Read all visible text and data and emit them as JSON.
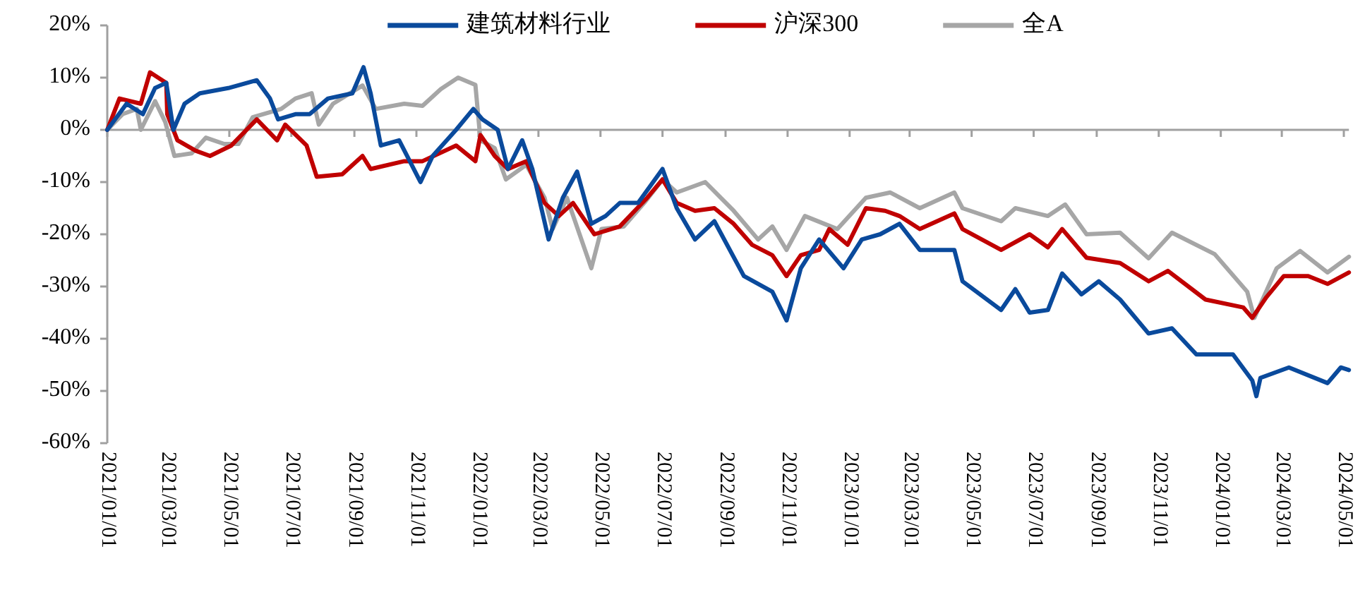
{
  "chart_data": {
    "type": "line",
    "legend": "top",
    "xlim": [
      "2021-01-01",
      "2024-05-06"
    ],
    "ylim": [
      -60,
      20
    ],
    "yticks": [
      {
        "value": 20,
        "label": "20%"
      },
      {
        "value": 10,
        "label": "10%"
      },
      {
        "value": 0,
        "label": "0%"
      },
      {
        "value": -10,
        "label": "-10%"
      },
      {
        "value": -20,
        "label": "-20%"
      },
      {
        "value": -30,
        "label": "-30%"
      },
      {
        "value": -40,
        "label": "-40%"
      },
      {
        "value": -50,
        "label": "-50%"
      },
      {
        "value": -60,
        "label": "-60%"
      }
    ],
    "xticks": [
      {
        "value": "2021-01-01",
        "label": "2021/01/01"
      },
      {
        "value": "2021-03-01",
        "label": "2021/03/01"
      },
      {
        "value": "2021-05-01",
        "label": "2021/05/01"
      },
      {
        "value": "2021-07-01",
        "label": "2021/07/01"
      },
      {
        "value": "2021-09-01",
        "label": "2021/09/01"
      },
      {
        "value": "2021-11-01",
        "label": "2021/11/01"
      },
      {
        "value": "2022-01-01",
        "label": "2022/01/01"
      },
      {
        "value": "2022-03-01",
        "label": "2022/03/01"
      },
      {
        "value": "2022-05-01",
        "label": "2022/05/01"
      },
      {
        "value": "2022-07-01",
        "label": "2022/07/01"
      },
      {
        "value": "2022-09-01",
        "label": "2022/09/01"
      },
      {
        "value": "2022-11-01",
        "label": "2022/11/01"
      },
      {
        "value": "2023-01-01",
        "label": "2023/01/01"
      },
      {
        "value": "2023-03-01",
        "label": "2023/03/01"
      },
      {
        "value": "2023-05-01",
        "label": "2023/05/01"
      },
      {
        "value": "2023-07-01",
        "label": "2023/07/01"
      },
      {
        "value": "2023-09-01",
        "label": "2023/09/01"
      },
      {
        "value": "2023-11-01",
        "label": "2023/11/01"
      },
      {
        "value": "2024-01-01",
        "label": "2024/01/01"
      },
      {
        "value": "2024-03-01",
        "label": "2024/03/01"
      },
      {
        "value": "2024-05-01",
        "label": "2024/05/01"
      }
    ],
    "series": [
      {
        "name": "建筑材料行业",
        "color": "#0a4a9c",
        "x": [
          "2021-01-01",
          "2021-01-20",
          "2021-02-05",
          "2021-02-17",
          "2021-02-28",
          "2021-03-07",
          "2021-03-18",
          "2021-04-02",
          "2021-04-30",
          "2021-05-28",
          "2021-06-10",
          "2021-06-18",
          "2021-07-05",
          "2021-07-19",
          "2021-08-06",
          "2021-08-30",
          "2021-09-10",
          "2021-09-17",
          "2021-09-27",
          "2021-10-15",
          "2021-11-05",
          "2021-11-17",
          "2021-12-10",
          "2021-12-27",
          "2022-01-05",
          "2022-01-20",
          "2022-01-30",
          "2022-02-13",
          "2022-02-23",
          "2022-03-11",
          "2022-03-25",
          "2022-04-08",
          "2022-04-22",
          "2022-05-06",
          "2022-05-20",
          "2022-06-07",
          "2022-07-01",
          "2022-07-15",
          "2022-08-02",
          "2022-08-21",
          "2022-09-19",
          "2022-10-17",
          "2022-10-31",
          "2022-11-14",
          "2022-12-02",
          "2022-12-26",
          "2023-01-13",
          "2023-01-31",
          "2023-02-19",
          "2023-03-11",
          "2023-04-14",
          "2023-04-22",
          "2023-05-30",
          "2023-06-13",
          "2023-06-27",
          "2023-07-15",
          "2023-07-29",
          "2023-08-17",
          "2023-09-03",
          "2023-09-24",
          "2023-10-22",
          "2023-11-14",
          "2023-12-08",
          "2024-01-13",
          "2024-02-01",
          "2024-02-05",
          "2024-02-09",
          "2024-03-08",
          "2024-04-15",
          "2024-04-28",
          "2024-05-06"
        ],
        "values": [
          0,
          5,
          3,
          8,
          9,
          0,
          5,
          7,
          8,
          9.5,
          6,
          2,
          3,
          3,
          6,
          7,
          12,
          7,
          -3,
          -2,
          -10,
          -5,
          0,
          4,
          2,
          0,
          -7.5,
          -2,
          -7.5,
          -21,
          -13,
          -8,
          -18,
          -16.5,
          -14,
          -14,
          -7.5,
          -15,
          -21,
          -17.5,
          -28,
          -31,
          -36.5,
          -26.5,
          -21,
          -26.5,
          -21,
          -20,
          -18,
          -23,
          -23,
          -29,
          -34.5,
          -30.5,
          -35,
          -34.5,
          -27.5,
          -31.5,
          -29,
          -32.5,
          -39,
          -38,
          -43,
          -43,
          -48,
          -51,
          -47.5,
          -45.5,
          -48.5,
          -45.5,
          -46
        ]
      },
      {
        "name": "沪深300",
        "color": "#c00000",
        "x": [
          "2021-01-01",
          "2021-01-13",
          "2021-02-03",
          "2021-02-12",
          "2021-02-28",
          "2021-03-01",
          "2021-03-11",
          "2021-03-29",
          "2021-04-12",
          "2021-05-03",
          "2021-05-28",
          "2021-06-17",
          "2021-06-25",
          "2021-07-16",
          "2021-07-26",
          "2021-08-20",
          "2021-09-09",
          "2021-09-17",
          "2021-10-20",
          "2021-11-07",
          "2021-12-10",
          "2021-12-29",
          "2022-01-03",
          "2022-01-17",
          "2022-01-30",
          "2022-02-17",
          "2022-03-07",
          "2022-03-21",
          "2022-04-04",
          "2022-04-25",
          "2022-05-20",
          "2022-06-16",
          "2022-07-01",
          "2022-07-15",
          "2022-08-02",
          "2022-08-21",
          "2022-09-09",
          "2022-09-27",
          "2022-10-17",
          "2022-10-31",
          "2022-11-14",
          "2022-12-02",
          "2022-12-12",
          "2022-12-30",
          "2023-01-17",
          "2023-02-05",
          "2023-02-19",
          "2023-03-11",
          "2023-04-14",
          "2023-04-22",
          "2023-05-30",
          "2023-06-27",
          "2023-07-15",
          "2023-07-29",
          "2023-08-22",
          "2023-09-24",
          "2023-10-22",
          "2023-11-10",
          "2023-12-17",
          "2024-01-23",
          "2024-02-01",
          "2024-02-15",
          "2024-03-03",
          "2024-03-27",
          "2024-04-15",
          "2024-05-06"
        ],
        "values": [
          0,
          6,
          5,
          11,
          9,
          3,
          -2,
          -4,
          -5,
          -3,
          2,
          -2,
          1,
          -3,
          -9,
          -8.5,
          -5,
          -7.5,
          -6,
          -6,
          -3,
          -6,
          -1,
          -5,
          -7.5,
          -6,
          -14,
          -16.5,
          -14,
          -20,
          -18.5,
          -13,
          -9.5,
          -14,
          -15.5,
          -15,
          -18,
          -22,
          -24,
          -28,
          -24,
          -23,
          -19,
          -22,
          -15,
          -15.5,
          -16.5,
          -19,
          -16,
          -19,
          -23,
          -20,
          -22.5,
          -19,
          -24.5,
          -25.5,
          -29,
          -27,
          -32.5,
          -34,
          -36,
          -32,
          -28,
          -28,
          -29.5,
          -27.3
        ]
      },
      {
        "name": "全A",
        "color": "#a6a6a6",
        "x": [
          "2021-01-01",
          "2021-01-16",
          "2021-01-30",
          "2021-02-03",
          "2021-02-17",
          "2021-02-27",
          "2021-03-08",
          "2021-03-25",
          "2021-04-08",
          "2021-04-26",
          "2021-05-10",
          "2021-05-24",
          "2021-06-21",
          "2021-07-05",
          "2021-07-21",
          "2021-07-28",
          "2021-08-11",
          "2021-09-09",
          "2021-09-22",
          "2021-10-20",
          "2021-11-07",
          "2021-11-25",
          "2021-12-12",
          "2021-12-29",
          "2022-01-03",
          "2022-01-17",
          "2022-01-28",
          "2022-02-17",
          "2022-03-07",
          "2022-03-15",
          "2022-03-29",
          "2022-04-22",
          "2022-05-02",
          "2022-05-24",
          "2022-06-13",
          "2022-07-01",
          "2022-07-15",
          "2022-08-12",
          "2022-09-09",
          "2022-10-03",
          "2022-10-17",
          "2022-10-31",
          "2022-11-18",
          "2022-12-20",
          "2023-01-17",
          "2023-02-10",
          "2023-03-11",
          "2023-04-14",
          "2023-04-22",
          "2023-05-30",
          "2023-06-13",
          "2023-07-15",
          "2023-08-01",
          "2023-08-22",
          "2023-09-24",
          "2023-10-22",
          "2023-11-14",
          "2023-12-26",
          "2024-01-27",
          "2024-02-03",
          "2024-02-25",
          "2024-03-19",
          "2024-04-15",
          "2024-05-06"
        ],
        "values": [
          0,
          3,
          4,
          0,
          5.5,
          1.5,
          -5,
          -4.5,
          -1.5,
          -2.7,
          -2.7,
          2.4,
          4,
          6,
          7,
          1,
          5,
          8.5,
          4,
          5,
          4.6,
          7.8,
          10,
          8.6,
          -2,
          -3.5,
          -9.5,
          -6.7,
          -13,
          -19,
          -13,
          -26.5,
          -19,
          -18.5,
          -14,
          -9.5,
          -12,
          -10,
          -15.5,
          -21,
          -18.5,
          -23,
          -16.5,
          -19,
          -13,
          -12,
          -15,
          -12,
          -15,
          -17.5,
          -15,
          -16.5,
          -14.3,
          -20,
          -19.7,
          -24.6,
          -19.7,
          -23.8,
          -31,
          -36,
          -26.5,
          -23.2,
          -27.3,
          -24.3
        ]
      }
    ]
  }
}
